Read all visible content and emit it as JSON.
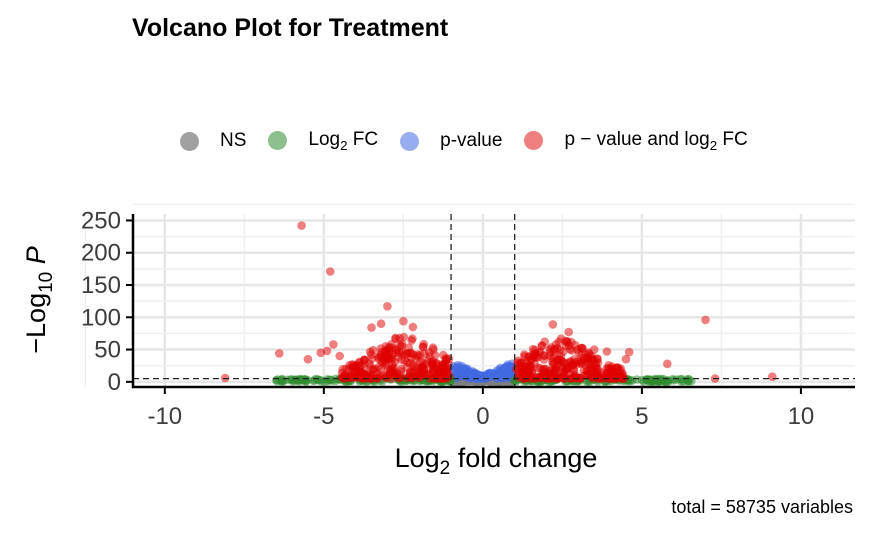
{
  "chart_data": {
    "type": "scatter",
    "title": "Volcano Plot for Treatment",
    "xlabel": "Log2 fold change",
    "ylabel": "−Log10 P",
    "caption": "total = 58735 variables",
    "xlim": [
      -11,
      11.7
    ],
    "ylim": [
      -8,
      260
    ],
    "xticks": [
      "-10",
      "-5",
      "0",
      "5",
      "10"
    ],
    "yticks": [
      "0",
      "50",
      "100",
      "150",
      "200",
      "250"
    ],
    "grid": true,
    "legend_position": "top",
    "cutoffs": {
      "log2fc": [
        -1,
        1
      ],
      "neg_log10_p": 5
    },
    "legend": [
      {
        "key": "NS",
        "label": "NS",
        "color": "#808080"
      },
      {
        "key": "fc",
        "label": "Log2 FC",
        "color": "#2e8b2e"
      },
      {
        "key": "p",
        "label": "p-value",
        "color": "#4169e1"
      },
      {
        "key": "both",
        "label": "p − value and log2 FC",
        "color": "#e00000"
      }
    ],
    "outliers": [
      {
        "x": -5.7,
        "y": 242
      },
      {
        "x": -4.8,
        "y": 171
      },
      {
        "x": -3.0,
        "y": 117
      },
      {
        "x": -2.5,
        "y": 94
      },
      {
        "x": -3.2,
        "y": 90
      },
      {
        "x": -3.5,
        "y": 84
      },
      {
        "x": -2.2,
        "y": 85
      },
      {
        "x": -4.7,
        "y": 58
      },
      {
        "x": -4.9,
        "y": 48
      },
      {
        "x": -5.1,
        "y": 45
      },
      {
        "x": -6.4,
        "y": 44
      },
      {
        "x": -4.5,
        "y": 40
      },
      {
        "x": -5.5,
        "y": 35
      },
      {
        "x": -8.1,
        "y": 6
      },
      {
        "x": 2.2,
        "y": 89
      },
      {
        "x": 2.7,
        "y": 77
      },
      {
        "x": 3.5,
        "y": 50
      },
      {
        "x": 3.9,
        "y": 47
      },
      {
        "x": 4.6,
        "y": 46
      },
      {
        "x": 4.5,
        "y": 35
      },
      {
        "x": 5.8,
        "y": 28
      },
      {
        "x": 7.0,
        "y": 96
      },
      {
        "x": 9.1,
        "y": 8
      },
      {
        "x": 7.3,
        "y": 5
      }
    ],
    "series": [
      {
        "key": "both",
        "name": "p − value and log2 FC",
        "description": "|log2FC| > 1 and −log10 P > 5: dense clusters roughly between -4.5 and -1 (y up to ~70) and between 1 and 4.5 (y up to ~60)"
      },
      {
        "key": "fc",
        "name": "Log2 FC",
        "description": "|log2FC| > 1, −log10 P < 5: spread along the baseline from about -6.8 to 6.7"
      },
      {
        "key": "p",
        "name": "p-value",
        "description": "|log2FC| < 1, −log10 P > 5: V-shaped band from 0 up to ~30 near ±1"
      },
      {
        "key": "NS",
        "name": "NS",
        "description": "|log2FC| < 1, −log10 P < 5: dense at the origin"
      }
    ]
  }
}
